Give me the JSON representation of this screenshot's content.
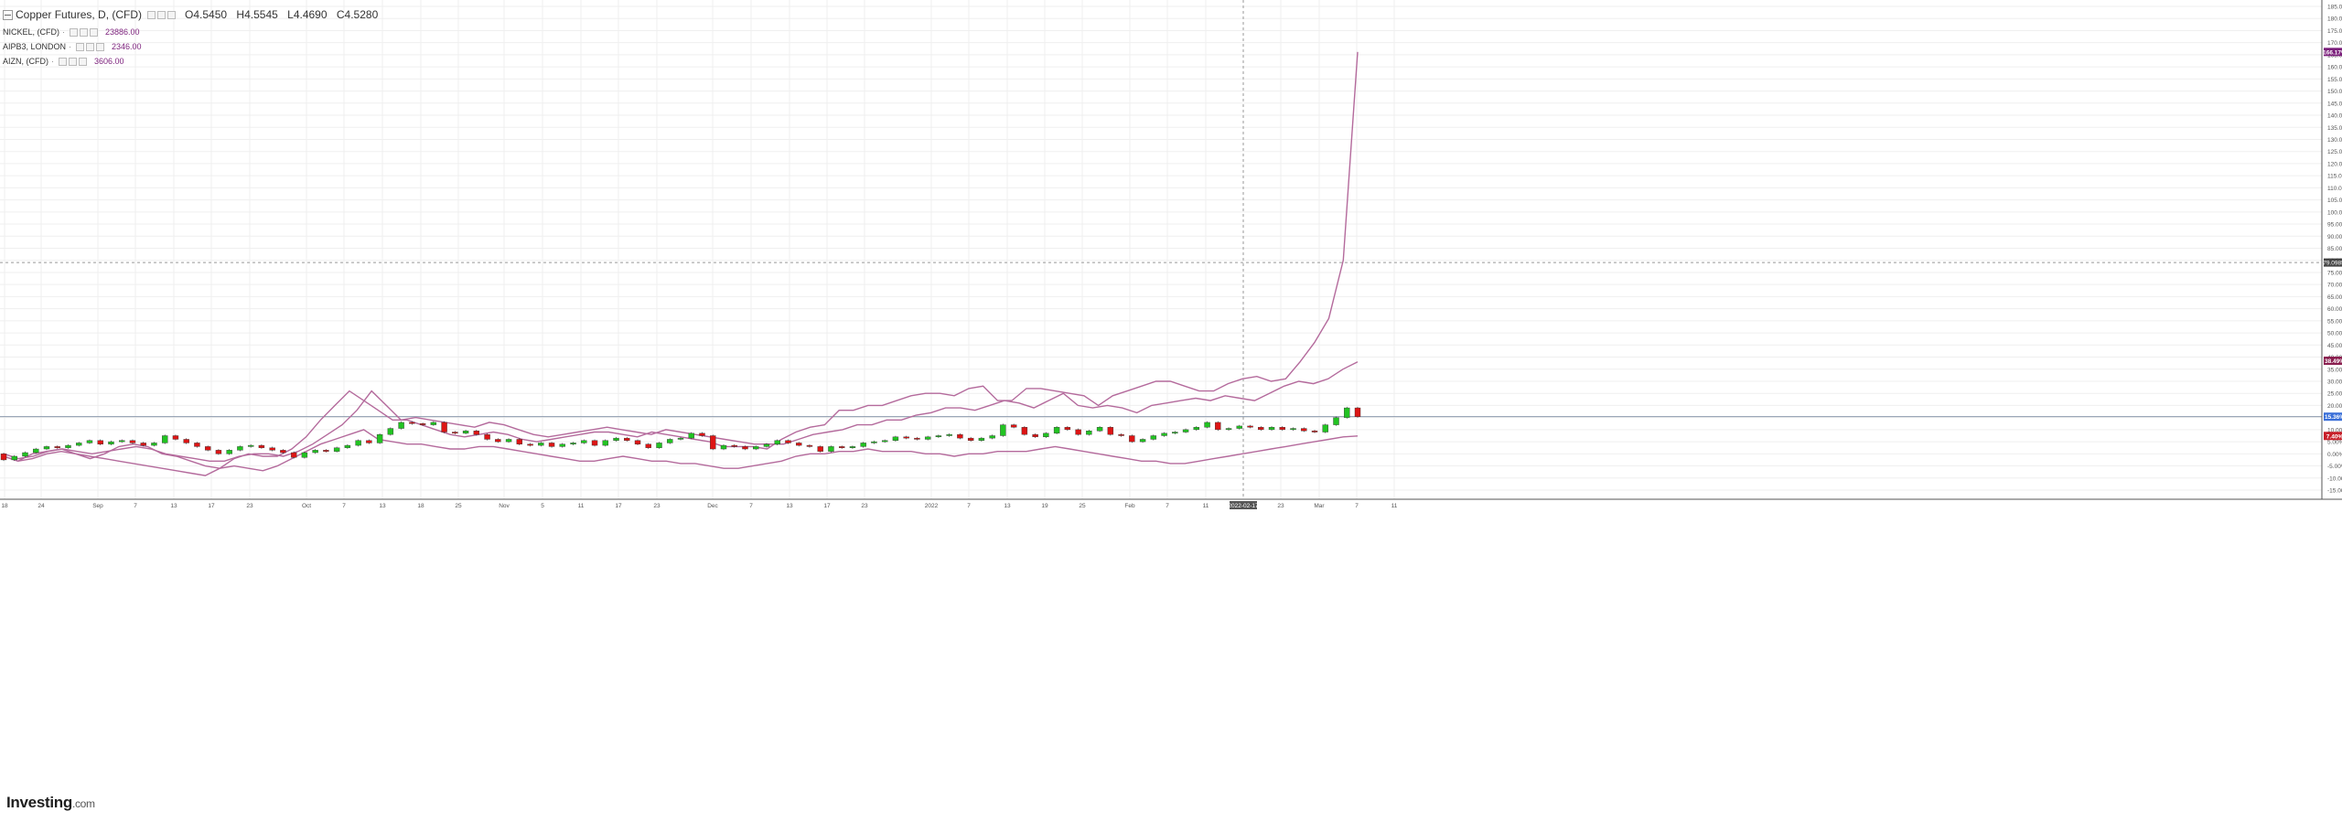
{
  "legend": {
    "main_title": "Copper Futures, D, (CFD)",
    "open": "O4.5450",
    "high": "H4.5545",
    "low": "L4.4690",
    "close": "C4.5280",
    "series": [
      {
        "name": "NICKEL, (CFD)",
        "value": "23886.00"
      },
      {
        "name": "AIPB3, LONDON",
        "value": "2346.00"
      },
      {
        "name": "AIZN, (CFD)",
        "value": "3606.00"
      }
    ]
  },
  "logo": {
    "text": "Investing",
    "suffix": ".com"
  },
  "colors": {
    "up": "#22c322",
    "down": "#dd1515",
    "compare_line": "#b46a9c",
    "grid": "#efefef",
    "axis_text": "#555555"
  },
  "chart_data": {
    "type": "line",
    "yaxis_ticks": [
      "185.00%",
      "180.00%",
      "175.00%",
      "170.00%",
      "165.00%",
      "160.00%",
      "155.00%",
      "150.00%",
      "145.00%",
      "140.00%",
      "135.00%",
      "130.00%",
      "125.00%",
      "120.00%",
      "115.00%",
      "110.00%",
      "105.00%",
      "100.00%",
      "95.00%",
      "90.00%",
      "85.00%",
      "80.00%",
      "75.00%",
      "70.00%",
      "65.00%",
      "60.00%",
      "55.00%",
      "50.00%",
      "45.00%",
      "40.00%",
      "35.00%",
      "30.00%",
      "25.00%",
      "20.00%",
      "15.00%",
      "10.00%",
      "5.00%",
      "0.00%",
      "-5.00%",
      "-10.00%",
      "-15.00%"
    ],
    "ylim": [
      -16,
      187
    ],
    "xaxis_ticks": [
      "18",
      "24",
      "Sep",
      "7",
      "13",
      "17",
      "23",
      "Oct",
      "7",
      "13",
      "18",
      "25",
      "Nov",
      "5",
      "11",
      "17",
      "23",
      "Dec",
      "7",
      "13",
      "17",
      "23",
      "2022",
      "7",
      "13",
      "19",
      "25",
      "Feb",
      "7",
      "11",
      "23",
      "Mar",
      "7",
      "11"
    ],
    "crosshair_date": "2022-02-17",
    "hline_label": "79.0985",
    "hline_value": 79.1,
    "right_labels": [
      {
        "text": "166.17%",
        "value": 166.17,
        "color": "#7b1f7b"
      },
      {
        "text": "38.49%",
        "value": 38.49,
        "color": "#8a1f4f"
      },
      {
        "text": "15.36%",
        "value": 15.36,
        "color": "#3a6fd8"
      },
      {
        "text": "7.40%",
        "value": 7.4,
        "color": "#c8202a"
      }
    ],
    "series": [
      {
        "name": "NICKEL, (CFD)",
        "values": [
          -1,
          -3,
          0,
          1,
          2,
          0,
          -2,
          0,
          3,
          4,
          3,
          0,
          -1,
          -3,
          -5,
          -6,
          -2,
          0,
          -1,
          -1,
          2,
          7,
          14,
          20,
          26,
          22,
          18,
          14,
          14,
          12,
          10,
          8,
          7,
          8,
          9,
          8,
          6,
          5,
          6,
          7,
          8,
          9,
          9,
          8,
          7,
          9,
          8,
          7,
          6,
          5,
          3,
          3,
          3,
          2,
          6,
          9,
          11,
          12,
          18,
          18,
          20,
          20,
          22,
          24,
          25,
          25,
          24,
          27,
          28,
          22,
          22,
          27,
          27,
          26,
          25,
          24,
          20,
          24,
          26,
          28,
          30,
          30,
          28,
          26,
          26,
          29,
          31,
          32,
          30,
          31,
          38,
          46,
          56,
          80,
          166.17
        ]
      },
      {
        "name": "AIPB3, LONDON",
        "values": [
          0,
          -2,
          -1,
          1,
          2,
          1,
          0,
          1,
          2,
          3,
          2,
          0,
          -1,
          -2,
          -3,
          -3,
          -1,
          0,
          0,
          -1,
          1,
          4,
          8,
          12,
          18,
          26,
          20,
          14,
          15,
          14,
          13,
          12,
          11,
          13,
          12,
          10,
          8,
          7,
          8,
          9,
          10,
          11,
          10,
          9,
          8,
          10,
          9,
          8,
          7,
          6,
          5,
          4,
          4,
          4,
          6,
          8,
          9,
          10,
          12,
          12,
          14,
          14,
          16,
          17,
          19,
          19,
          18,
          20,
          22,
          21,
          19,
          22,
          25,
          20,
          19,
          20,
          19,
          17,
          20,
          21,
          22,
          23,
          22,
          24,
          23,
          22,
          25,
          28,
          30,
          29,
          31,
          35,
          38
        ]
      },
      {
        "name": "AIZN, (CFD)",
        "values": [
          -1,
          -3,
          -2,
          0,
          1,
          0,
          -1,
          -2,
          -3,
          -4,
          -5,
          -6,
          -7,
          -8,
          -9,
          -6,
          -5,
          -6,
          -7,
          -5,
          -2,
          1,
          4,
          6,
          8,
          10,
          6,
          5,
          4,
          4,
          3,
          2,
          2,
          3,
          3,
          2,
          1,
          0,
          -1,
          -2,
          -3,
          -3,
          -2,
          -1,
          -2,
          -3,
          -3,
          -4,
          -4,
          -5,
          -6,
          -6,
          -5,
          -4,
          -3,
          -1,
          0,
          0,
          1,
          1,
          2,
          1,
          1,
          1,
          0,
          0,
          -1,
          0,
          0,
          1,
          1,
          1,
          2,
          3,
          2,
          1,
          0,
          -1,
          -2,
          -3,
          -3,
          -4,
          -4,
          -3,
          -2,
          -1,
          0,
          1,
          2,
          3,
          4,
          5,
          6,
          7,
          7.4
        ]
      }
    ],
    "copper_candles": [
      {
        "o": 0,
        "c": -2.5
      },
      {
        "o": -2.5,
        "c": -1
      },
      {
        "o": -1,
        "c": 0.5
      },
      {
        "o": 0.5,
        "c": 2
      },
      {
        "o": 2,
        "c": 3
      },
      {
        "o": 3,
        "c": 2.5
      },
      {
        "o": 2.5,
        "c": 3.5
      },
      {
        "o": 3.5,
        "c": 4.5
      },
      {
        "o": 4.5,
        "c": 5.5
      },
      {
        "o": 5.5,
        "c": 4
      },
      {
        "o": 4,
        "c": 5
      },
      {
        "o": 5,
        "c": 5.5
      },
      {
        "o": 5.5,
        "c": 4.5
      },
      {
        "o": 4.5,
        "c": 3.5
      },
      {
        "o": 3.5,
        "c": 4.5
      },
      {
        "o": 4.5,
        "c": 7.5
      },
      {
        "o": 7.5,
        "c": 6
      },
      {
        "o": 6,
        "c": 4.5
      },
      {
        "o": 4.5,
        "c": 3
      },
      {
        "o": 3,
        "c": 1.5
      },
      {
        "o": 1.5,
        "c": 0
      },
      {
        "o": 0,
        "c": 1.5
      },
      {
        "o": 1.5,
        "c": 3
      },
      {
        "o": 3,
        "c": 3.5
      },
      {
        "o": 3.5,
        "c": 2.5
      },
      {
        "o": 2.5,
        "c": 1.5
      },
      {
        "o": 1.5,
        "c": 0.5
      },
      {
        "o": 0.5,
        "c": -1.5
      },
      {
        "o": -1.5,
        "c": 0.5
      },
      {
        "o": 0.5,
        "c": 1.5
      },
      {
        "o": 1.5,
        "c": 1
      },
      {
        "o": 1,
        "c": 2.5
      },
      {
        "o": 2.5,
        "c": 3.5
      },
      {
        "o": 3.5,
        "c": 5.5
      },
      {
        "o": 5.5,
        "c": 4.5
      },
      {
        "o": 4.5,
        "c": 8
      },
      {
        "o": 8,
        "c": 10.5
      },
      {
        "o": 10.5,
        "c": 13
      },
      {
        "o": 13,
        "c": 12.5
      },
      {
        "o": 12.5,
        "c": 12
      },
      {
        "o": 12,
        "c": 13
      },
      {
        "o": 13,
        "c": 9
      },
      {
        "o": 9,
        "c": 8.5
      },
      {
        "o": 8.5,
        "c": 9.5
      },
      {
        "o": 9.5,
        "c": 8
      },
      {
        "o": 8,
        "c": 6
      },
      {
        "o": 6,
        "c": 5
      },
      {
        "o": 5,
        "c": 6
      },
      {
        "o": 6,
        "c": 4
      },
      {
        "o": 4,
        "c": 3.5
      },
      {
        "o": 3.5,
        "c": 4.5
      },
      {
        "o": 4.5,
        "c": 3
      },
      {
        "o": 3,
        "c": 4
      },
      {
        "o": 4,
        "c": 4.5
      },
      {
        "o": 4.5,
        "c": 5.5
      },
      {
        "o": 5.5,
        "c": 3.5
      },
      {
        "o": 3.5,
        "c": 5.5
      },
      {
        "o": 5.5,
        "c": 6.5
      },
      {
        "o": 6.5,
        "c": 5.5
      },
      {
        "o": 5.5,
        "c": 4
      },
      {
        "o": 4,
        "c": 2.5
      },
      {
        "o": 2.5,
        "c": 4.5
      },
      {
        "o": 4.5,
        "c": 6
      },
      {
        "o": 6,
        "c": 6.5
      },
      {
        "o": 6.5,
        "c": 8.5
      },
      {
        "o": 8.5,
        "c": 7.5
      },
      {
        "o": 7.5,
        "c": 2
      },
      {
        "o": 2,
        "c": 3.5
      },
      {
        "o": 3.5,
        "c": 3
      },
      {
        "o": 3,
        "c": 2
      },
      {
        "o": 2,
        "c": 3
      },
      {
        "o": 3,
        "c": 4
      },
      {
        "o": 4,
        "c": 5.5
      },
      {
        "o": 5.5,
        "c": 4.5
      },
      {
        "o": 4.5,
        "c": 3.5
      },
      {
        "o": 3.5,
        "c": 3
      },
      {
        "o": 3,
        "c": 1
      },
      {
        "o": 1,
        "c": 3
      },
      {
        "o": 3,
        "c": 2.5
      },
      {
        "o": 2.5,
        "c": 3
      },
      {
        "o": 3,
        "c": 4.5
      },
      {
        "o": 4.5,
        "c": 5
      },
      {
        "o": 5,
        "c": 5.5
      },
      {
        "o": 5.5,
        "c": 7
      },
      {
        "o": 7,
        "c": 6.5
      },
      {
        "o": 6.5,
        "c": 6
      },
      {
        "o": 6,
        "c": 7
      },
      {
        "o": 7,
        "c": 7.5
      },
      {
        "o": 7.5,
        "c": 8
      },
      {
        "o": 8,
        "c": 6.5
      },
      {
        "o": 6.5,
        "c": 5.5
      },
      {
        "o": 5.5,
        "c": 6.5
      },
      {
        "o": 6.5,
        "c": 7.5
      },
      {
        "o": 7.5,
        "c": 12
      },
      {
        "o": 12,
        "c": 11
      },
      {
        "o": 11,
        "c": 8
      },
      {
        "o": 8,
        "c": 7
      },
      {
        "o": 7,
        "c": 8.5
      },
      {
        "o": 8.5,
        "c": 11
      },
      {
        "o": 11,
        "c": 10
      },
      {
        "o": 10,
        "c": 8
      },
      {
        "o": 8,
        "c": 9.5
      },
      {
        "o": 9.5,
        "c": 11
      },
      {
        "o": 11,
        "c": 8
      },
      {
        "o": 8,
        "c": 7.5
      },
      {
        "o": 7.5,
        "c": 5
      },
      {
        "o": 5,
        "c": 6
      },
      {
        "o": 6,
        "c": 7.5
      },
      {
        "o": 7.5,
        "c": 8.5
      },
      {
        "o": 8.5,
        "c": 9
      },
      {
        "o": 9,
        "c": 10
      },
      {
        "o": 10,
        "c": 11
      },
      {
        "o": 11,
        "c": 13
      },
      {
        "o": 13,
        "c": 10
      },
      {
        "o": 10,
        "c": 10.5
      },
      {
        "o": 10.5,
        "c": 11.5
      },
      {
        "o": 11.5,
        "c": 11
      },
      {
        "o": 11,
        "c": 10
      },
      {
        "o": 10,
        "c": 11
      },
      {
        "o": 11,
        "c": 10
      },
      {
        "o": 10,
        "c": 10.5
      },
      {
        "o": 10.5,
        "c": 9.5
      },
      {
        "o": 9.5,
        "c": 9
      },
      {
        "o": 9,
        "c": 12
      },
      {
        "o": 12,
        "c": 15
      },
      {
        "o": 15,
        "c": 19
      },
      {
        "o": 19,
        "c": 15.36
      }
    ]
  }
}
